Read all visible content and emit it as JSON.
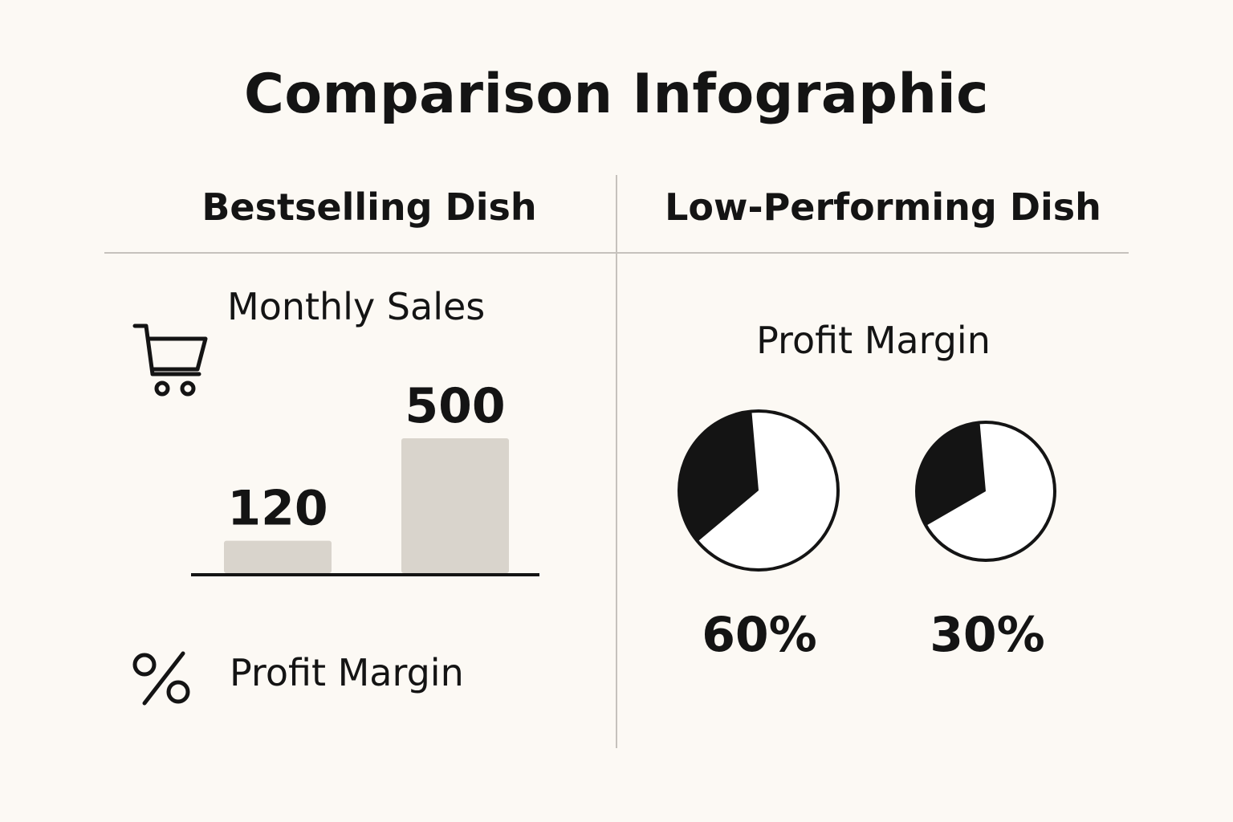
{
  "title": "Comparison Infographic",
  "columns": {
    "left": {
      "heading": "Bestselling Dish"
    },
    "right": {
      "heading": "Low-Performing Dish"
    }
  },
  "left_panel": {
    "sales_label": "Monthly Sales",
    "profit_label": "Profit Margin",
    "icons": [
      "shopping-cart-icon",
      "percent-icon"
    ]
  },
  "right_panel": {
    "profit_label": "Profit Margin"
  },
  "chart_data": [
    {
      "type": "bar",
      "title": "Monthly Sales",
      "categories": [
        "",
        ""
      ],
      "values": [
        120,
        500
      ],
      "data_labels": [
        "120",
        "500"
      ],
      "ylim": [
        0,
        500
      ],
      "grid": false,
      "bar_color": "#d9d4cc"
    },
    {
      "type": "pie",
      "title": "Profit Margin",
      "values": [
        60,
        30
      ],
      "labels": [
        "60%",
        "30%"
      ],
      "fill_color": "#141414",
      "background_color": "#ffffff"
    }
  ]
}
